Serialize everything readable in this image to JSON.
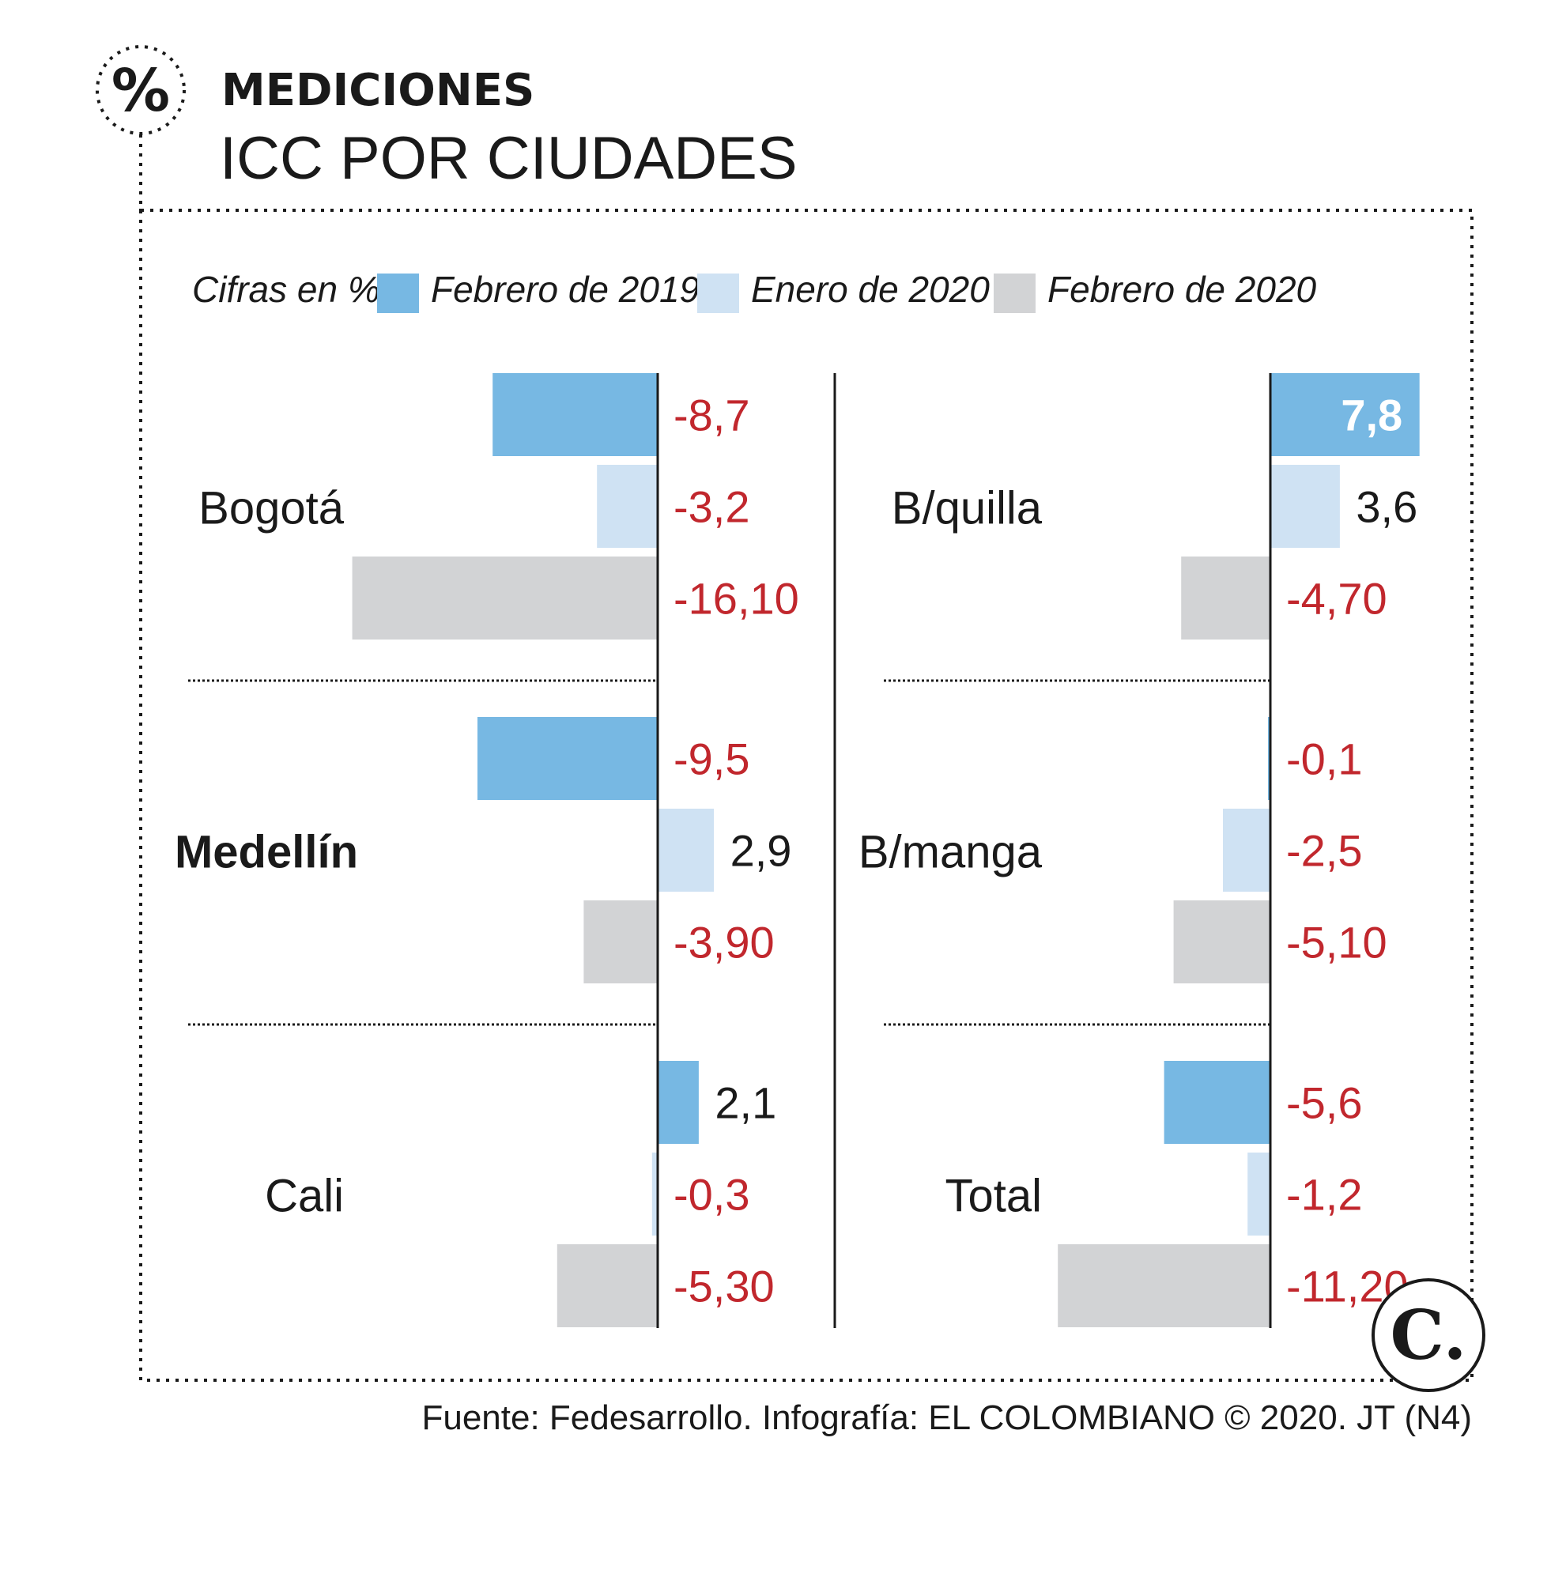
{
  "header": {
    "kicker": "MEDICIONES",
    "title": "ICC POR CIUDADES",
    "icon": "percent-icon"
  },
  "legend": {
    "unit_label": "Cifras en %",
    "items": [
      {
        "label": "Febrero de 2019",
        "color": "#77b8e3"
      },
      {
        "label": "Enero de 2020",
        "color": "#cfe2f3"
      },
      {
        "label": "Febrero de 2020",
        "color": "#d2d3d5"
      }
    ]
  },
  "chart_data": {
    "type": "bar",
    "orientation": "horizontal",
    "series": [
      {
        "name": "Febrero de 2019",
        "color": "#77b8e3"
      },
      {
        "name": "Enero de 2020",
        "color": "#cfe2f3"
      },
      {
        "name": "Febrero de 2020",
        "color": "#d2d3d5"
      }
    ],
    "panels": [
      {
        "city": "Bogotá",
        "bold": false,
        "column": "left",
        "values": [
          -8.7,
          -3.2,
          -16.1
        ],
        "labels": [
          "-8,7",
          "-3,2",
          "-16,10"
        ]
      },
      {
        "city": "Medellín",
        "bold": true,
        "column": "left",
        "values": [
          -9.5,
          2.9,
          -3.9
        ],
        "labels": [
          "-9,5",
          "2,9",
          "-3,90"
        ]
      },
      {
        "city": "Cali",
        "bold": false,
        "column": "left",
        "values": [
          2.1,
          -0.3,
          -5.3
        ],
        "labels": [
          "2,1",
          "-0,3",
          "-5,30"
        ]
      },
      {
        "city": "B/quilla",
        "bold": false,
        "column": "right",
        "values": [
          7.8,
          3.6,
          -4.7
        ],
        "labels": [
          "7,8",
          "3,6",
          "-4,70"
        ]
      },
      {
        "city": "B/manga",
        "bold": false,
        "column": "right",
        "values": [
          -0.1,
          -2.5,
          -5.1
        ],
        "labels": [
          "-0,1",
          "-2,5",
          "-5,10"
        ]
      },
      {
        "city": "Total",
        "bold": false,
        "column": "right",
        "values": [
          -5.6,
          -1.2,
          -11.2
        ],
        "labels": [
          "-5,6",
          "-1,2",
          "-11,20"
        ]
      }
    ],
    "label_colors": {
      "negative": "#c1272d",
      "positive": "#1a1a1a",
      "inside_bar": "#ffffff"
    }
  },
  "source": "Fuente: Fedesarrollo. Infografía: EL COLOMBIANO © 2020. JT (N4)",
  "logo": {
    "text": "C.",
    "icon": "el-colombiano-logo"
  }
}
